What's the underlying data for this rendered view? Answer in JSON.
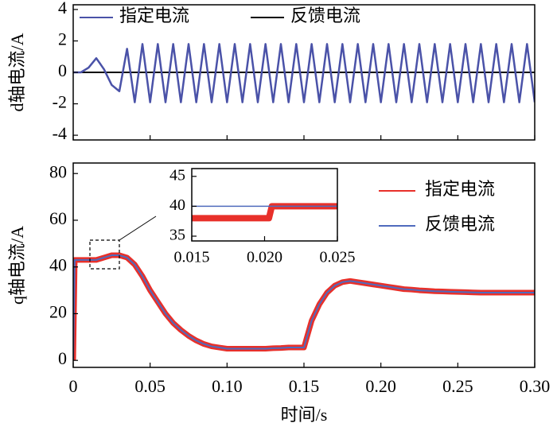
{
  "chart_data": [
    {
      "type": "line",
      "ylabel": "d轴电流/A",
      "x": [
        0,
        0.005,
        0.01,
        0.015,
        0.02,
        0.025,
        0.03,
        0.035,
        0.04,
        0.045,
        0.05,
        0.055,
        0.06,
        0.065,
        0.07,
        0.075,
        0.08,
        0.085,
        0.09,
        0.095,
        0.1,
        0.105,
        0.11,
        0.115,
        0.12,
        0.125,
        0.13,
        0.135,
        0.14,
        0.145,
        0.15,
        0.155,
        0.16,
        0.165,
        0.17,
        0.175,
        0.18,
        0.185,
        0.19,
        0.195,
        0.2,
        0.205,
        0.21,
        0.215,
        0.22,
        0.225,
        0.23,
        0.235,
        0.24,
        0.245,
        0.25,
        0.255,
        0.26,
        0.265,
        0.27,
        0.275,
        0.28,
        0.285,
        0.29,
        0.295,
        0.3
      ],
      "series": [
        {
          "name": "反馈电流",
          "color": "#000000",
          "values": [
            0,
            0,
            0,
            0,
            0,
            0,
            0,
            0,
            0,
            0,
            0,
            0,
            0,
            0,
            0,
            0,
            0,
            0,
            0,
            0,
            0,
            0,
            0,
            0,
            0,
            0,
            0,
            0,
            0,
            0,
            0,
            0,
            0,
            0,
            0,
            0,
            0,
            0,
            0,
            0,
            0,
            0,
            0,
            0,
            0,
            0,
            0,
            0,
            0,
            0,
            0,
            0,
            0,
            0,
            0,
            0,
            0,
            0,
            0,
            0,
            0
          ]
        },
        {
          "name": "指定电流",
          "color": "#4a52a8",
          "values": [
            0,
            0,
            0.3,
            0.9,
            0.2,
            -0.8,
            -1.2,
            1.5,
            -1.9,
            1.8,
            -1.9,
            1.8,
            -1.9,
            1.8,
            -1.9,
            1.8,
            -1.9,
            1.8,
            -1.9,
            1.8,
            -1.9,
            1.8,
            -1.9,
            1.8,
            -1.9,
            1.8,
            -1.9,
            1.8,
            -1.9,
            1.8,
            -1.9,
            1.8,
            -1.9,
            1.8,
            -1.9,
            1.8,
            -1.9,
            1.8,
            -1.9,
            1.8,
            -1.9,
            1.8,
            -1.9,
            1.8,
            -1.9,
            1.8,
            -1.9,
            1.8,
            -1.9,
            1.8,
            -1.9,
            1.8,
            -1.9,
            1.8,
            -1.9,
            1.8,
            -1.9,
            1.8,
            -1.9,
            1.8,
            -1.9
          ]
        }
      ],
      "xlim": [
        0,
        0.3
      ],
      "ylim": [
        -4.3,
        4.3
      ],
      "yticks": [
        -4,
        -2,
        0,
        2,
        4
      ]
    },
    {
      "type": "line",
      "ylabel": "q轴电流/A",
      "xlabel": "时间/s",
      "x": [
        0,
        0.001,
        0.005,
        0.01,
        0.015,
        0.02,
        0.025,
        0.03,
        0.035,
        0.04,
        0.045,
        0.05,
        0.055,
        0.06,
        0.065,
        0.07,
        0.075,
        0.08,
        0.085,
        0.09,
        0.095,
        0.1,
        0.105,
        0.11,
        0.115,
        0.12,
        0.125,
        0.13,
        0.135,
        0.14,
        0.145,
        0.15,
        0.155,
        0.16,
        0.165,
        0.17,
        0.175,
        0.18,
        0.185,
        0.19,
        0.195,
        0.2,
        0.205,
        0.21,
        0.215,
        0.22,
        0.225,
        0.23,
        0.235,
        0.24,
        0.245,
        0.25,
        0.255,
        0.26,
        0.265,
        0.27,
        0.275,
        0.28,
        0.285,
        0.29,
        0.295,
        0.3
      ],
      "series": [
        {
          "name": "指定电流",
          "color": "#e8302a",
          "values": [
            0,
            43,
            43,
            43,
            43,
            44,
            45,
            45,
            44,
            41,
            36,
            30,
            25,
            20,
            16,
            13,
            10.5,
            8.5,
            7,
            6,
            5.5,
            5,
            5,
            5,
            5,
            5,
            5,
            5.2,
            5.3,
            5.5,
            5.5,
            5.5,
            17,
            24,
            29,
            32,
            33.5,
            34,
            33.5,
            33,
            32.5,
            32,
            31.5,
            31,
            30.5,
            30.3,
            30,
            29.8,
            29.6,
            29.5,
            29.4,
            29.3,
            29.2,
            29.1,
            29,
            29,
            29,
            29,
            29,
            29,
            29,
            29
          ]
        },
        {
          "name": "反馈电流",
          "color": "#4f6bbd",
          "values": [
            0,
            43,
            43,
            43,
            43,
            44,
            45,
            45,
            44,
            41,
            36,
            30,
            25,
            20,
            16,
            13,
            10.5,
            8.5,
            7,
            6,
            5.5,
            5,
            5,
            5,
            5,
            5,
            5,
            5.2,
            5.3,
            5.5,
            5.5,
            5.5,
            17,
            24,
            29,
            32,
            33.5,
            34,
            33.5,
            33,
            32.5,
            32,
            31.5,
            31,
            30.5,
            30.3,
            30,
            29.8,
            29.6,
            29.5,
            29.4,
            29.3,
            29.2,
            29.1,
            29,
            29,
            29,
            29,
            29,
            29,
            29,
            29
          ]
        }
      ],
      "xlim": [
        0,
        0.3
      ],
      "ylim": [
        -3,
        84.5
      ],
      "yticks": [
        0,
        20,
        40,
        60,
        80
      ],
      "xticks": [
        0,
        0.05,
        {
          "value": 0.1,
          "label": "0.10"
        },
        0.15,
        {
          "value": 0.2,
          "label": "0.20"
        },
        0.25,
        {
          "value": 0.3,
          "label": "0.30"
        }
      ]
    },
    {
      "type": "line",
      "x": [
        0.015,
        0.0203,
        0.0205,
        0.025
      ],
      "series": [
        {
          "color": "#e8302a",
          "values": [
            38,
            38,
            40,
            40
          ]
        },
        {
          "color": "#4f6bbd",
          "values": [
            40,
            40,
            40,
            40
          ]
        }
      ],
      "xlim": [
        0.015,
        0.025
      ],
      "ylim": [
        34.2,
        46.3
      ],
      "yticks": [
        35,
        40,
        45
      ],
      "xticks": [
        0.015,
        {
          "value": 0.02,
          "label": "0.020"
        },
        0.025
      ]
    }
  ]
}
